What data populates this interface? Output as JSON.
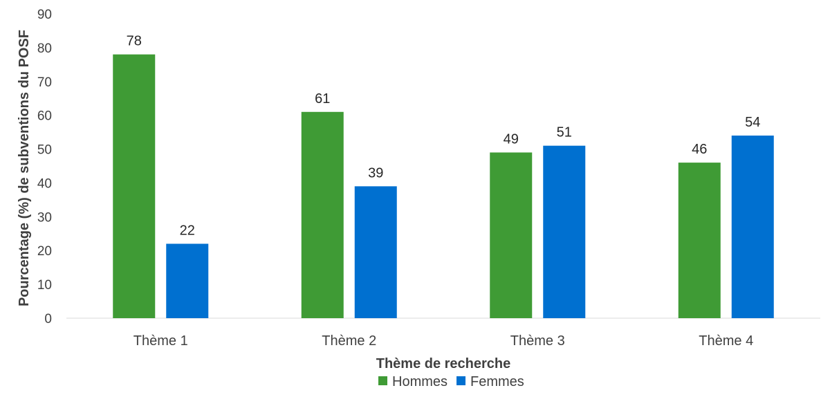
{
  "chart_data": {
    "type": "bar",
    "categories": [
      "Thème 1",
      "Thème 2",
      "Thème 3",
      "Thème 4"
    ],
    "series": [
      {
        "name": "Hommes",
        "values": [
          78,
          61,
          49,
          46
        ],
        "color": "#3f9b35"
      },
      {
        "name": "Femmes",
        "values": [
          22,
          39,
          51,
          54
        ],
        "color": "#0070d0"
      }
    ],
    "title": "",
    "xlabel": "Thème de recherche",
    "ylabel": "Pourcentage (%) de subventions du POSF",
    "ylim": [
      0,
      90
    ],
    "yticks": [
      0,
      10,
      20,
      30,
      40,
      50,
      60,
      70,
      80,
      90
    ],
    "grid": false,
    "legend_position": "bottom"
  }
}
